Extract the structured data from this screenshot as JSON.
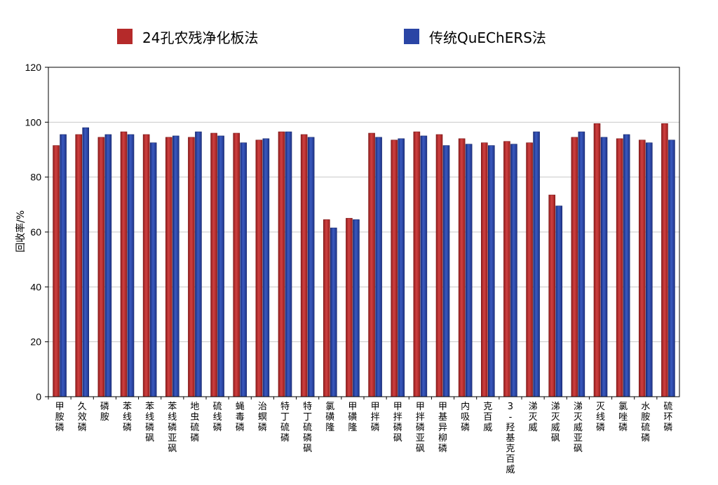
{
  "chart_data": {
    "type": "bar",
    "ylabel": "回收率/%",
    "ylim": [
      0,
      120
    ],
    "yticks": [
      0,
      20,
      40,
      60,
      80,
      100,
      120
    ],
    "grid": true,
    "legend_position": "top",
    "categories": [
      "甲胺磷",
      "久效磷",
      "磷胺",
      "苯线磷",
      "苯线磷砜",
      "苯线磷亚砜",
      "地虫硫磷",
      "硫线磷",
      "蝇毒磷",
      "治螟磷",
      "特丁硫磷",
      "特丁硫磷砜",
      "氯磺隆",
      "甲磺隆",
      "甲拌磷",
      "甲拌磷砜",
      "甲拌磷亚砜",
      "甲基异柳磷",
      "内吸磷",
      "克百威",
      "3-羟基克百威",
      "涕灭威",
      "涕灭威砜",
      "涕灭威亚砜",
      "灭线磷",
      "氯唑磷",
      "水胺硫磷",
      "硫环磷"
    ],
    "series": [
      {
        "name": "24孔农残净化板法",
        "color": "#b52a2a",
        "values": [
          91.5,
          95.5,
          94.5,
          96.5,
          95.5,
          94.5,
          94.5,
          96,
          96,
          93.5,
          96.5,
          95.5,
          64.5,
          65,
          96,
          93.5,
          96.5,
          95.5,
          94,
          92.5,
          93,
          92.5,
          73.5,
          94.5,
          99.5,
          94,
          93.5,
          99.5
        ]
      },
      {
        "name": "传统QuEChERS法",
        "color": "#2a45a5",
        "values": [
          95.5,
          98,
          95.5,
          95.5,
          92.5,
          95,
          96.5,
          95,
          92.5,
          94,
          96.5,
          94.5,
          61.5,
          64.5,
          94.5,
          94,
          95,
          91.5,
          92,
          91.5,
          92,
          96.5,
          69.5,
          96.5,
          94.5,
          95.5,
          92.5,
          93.5
        ]
      }
    ]
  }
}
